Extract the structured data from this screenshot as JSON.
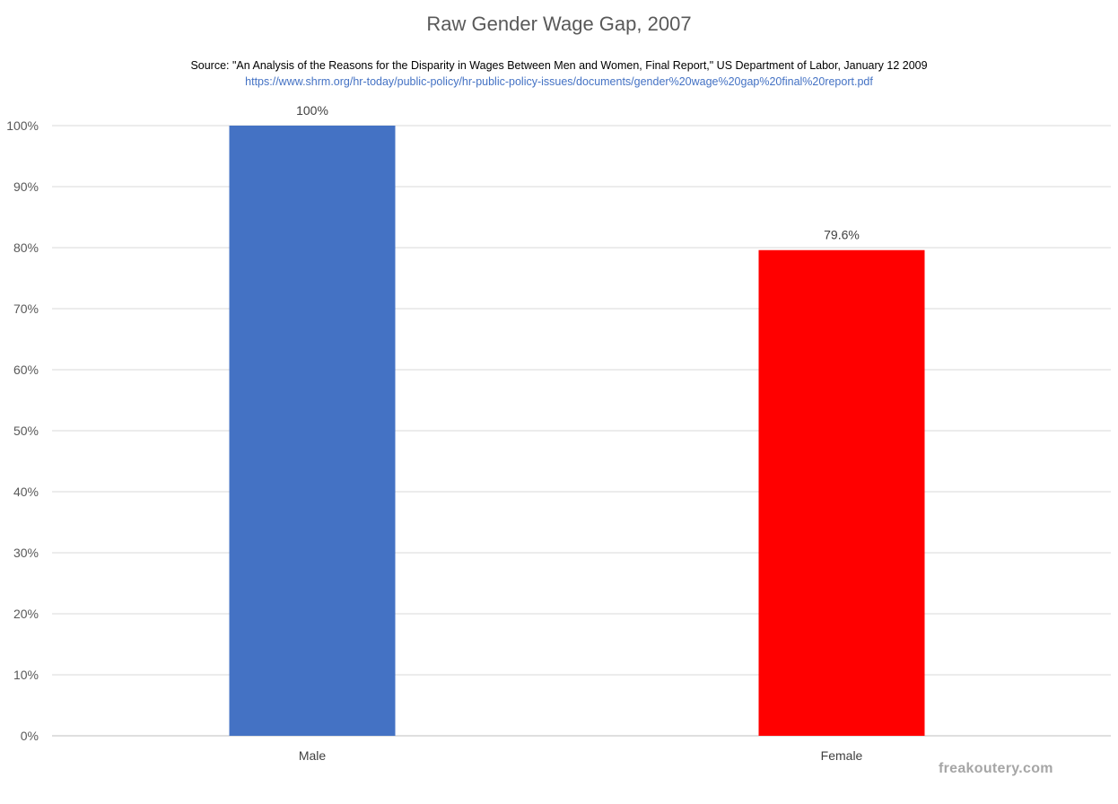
{
  "chart_data": {
    "type": "bar",
    "title": "Raw Gender Wage Gap, 2007",
    "subtitle": "Source: \"An Analysis of the Reasons for the Disparity in Wages Between Men and Women, Final Report,\" US Department of Labor, January 12 2009",
    "source_url": "https://www.shrm.org/hr-today/public-policy/hr-public-policy-issues/documents/gender%20wage%20gap%20final%20report.pdf",
    "categories": [
      "Male",
      "Female"
    ],
    "values": [
      100,
      79.6
    ],
    "data_labels": [
      "100%",
      "79.6%"
    ],
    "bar_colors": [
      "#4472c4",
      "#ff0000"
    ],
    "ylim": [
      0,
      100
    ],
    "y_ticks": [
      0,
      10,
      20,
      30,
      40,
      50,
      60,
      70,
      80,
      90,
      100
    ],
    "y_tick_labels": [
      "0%",
      "10%",
      "20%",
      "30%",
      "40%",
      "50%",
      "60%",
      "70%",
      "80%",
      "90%",
      "100%"
    ],
    "xlabel": "",
    "ylabel": "",
    "grid": true,
    "legend": "none"
  },
  "watermark": "freakoutery.com",
  "colors": {
    "title": "#595959",
    "gridline": "#d9d9d9",
    "url": "#4472c4"
  }
}
